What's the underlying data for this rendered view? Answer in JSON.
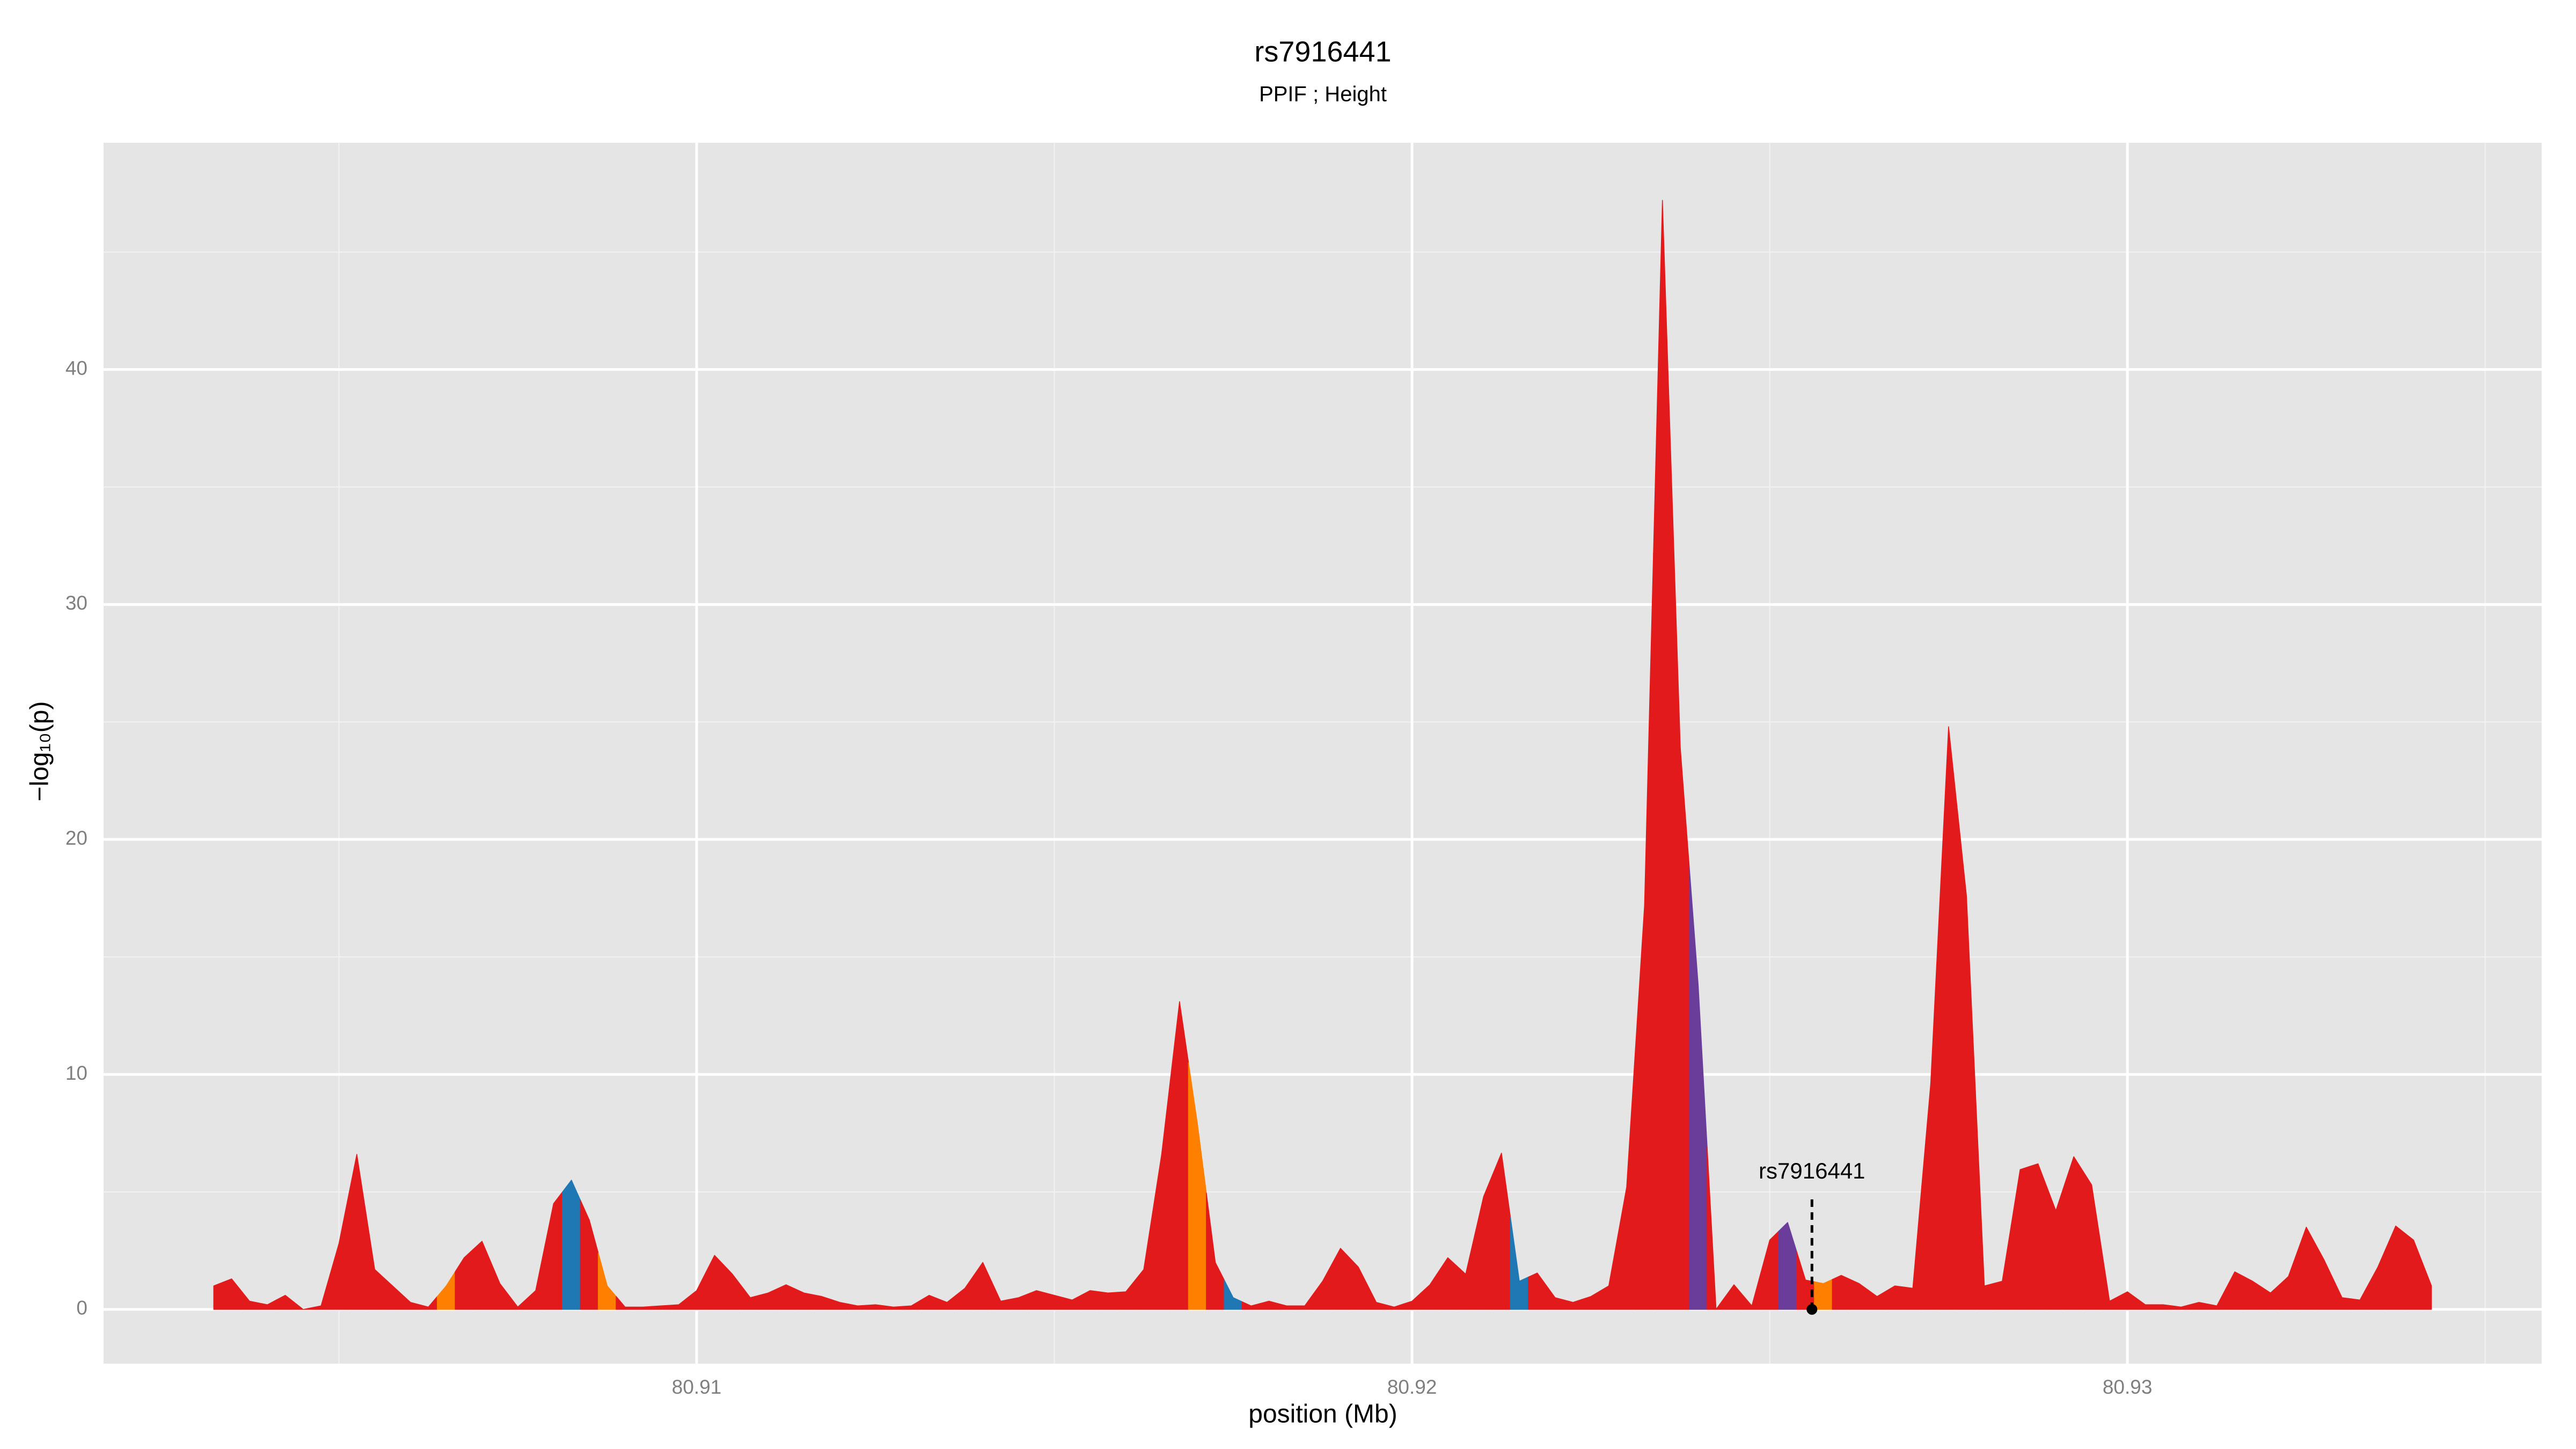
{
  "chart_data": {
    "type": "area",
    "title": "rs7916441",
    "subtitle": "PPIF ; Height",
    "x_label": "position (Mb)",
    "y_label": "−log₁₀(p)",
    "x": [
      80.90325,
      80.9035,
      80.90375,
      80.904,
      80.90425,
      80.9045,
      80.90475,
      80.905,
      80.90525,
      80.9055,
      80.90575,
      80.906,
      80.90625,
      80.9065,
      80.90675,
      80.907,
      80.90725,
      80.9075,
      80.90775,
      80.908,
      80.90825,
      80.9085,
      80.90875,
      80.909,
      80.90925,
      80.9095,
      80.90975,
      80.91,
      80.91025,
      80.9105,
      80.91075,
      80.911,
      80.91125,
      80.9115,
      80.91175,
      80.912,
      80.91225,
      80.9125,
      80.91275,
      80.913,
      80.91325,
      80.9135,
      80.91375,
      80.914,
      80.91425,
      80.9145,
      80.91475,
      80.915,
      80.91525,
      80.9155,
      80.91575,
      80.916,
      80.91625,
      80.9165,
      80.91675,
      80.917,
      80.91725,
      80.9175,
      80.91775,
      80.918,
      80.91825,
      80.9185,
      80.91875,
      80.919,
      80.91925,
      80.9195,
      80.91975,
      80.92,
      80.92025,
      80.9205,
      80.92075,
      80.921,
      80.92125,
      80.9215,
      80.92175,
      80.922,
      80.92225,
      80.9225,
      80.92275,
      80.923,
      80.92325,
      80.9235,
      80.92375,
      80.924,
      80.92425,
      80.9245,
      80.92475,
      80.925,
      80.92525,
      80.9255,
      80.92575,
      80.926,
      80.92625,
      80.9265,
      80.92675,
      80.927,
      80.92725,
      80.9275,
      80.92775,
      80.928,
      80.92825,
      80.9285,
      80.92875,
      80.929,
      80.92925,
      80.9295,
      80.92975,
      80.93,
      80.93025,
      80.9305,
      80.93075,
      80.931,
      80.93125,
      80.9315,
      80.93175,
      80.932,
      80.93225,
      80.9325,
      80.93275,
      80.933,
      80.93325,
      80.9335,
      80.93375,
      80.934,
      80.93425
    ],
    "values": [
      1.0,
      1.3,
      0.35,
      0.2,
      0.6,
      0,
      0.15,
      2.8,
      6.6,
      1.7,
      1.0,
      0.3,
      0.1,
      1.0,
      2.2,
      2.9,
      1.1,
      0.1,
      0.8,
      4.5,
      5.5,
      3.8,
      1.0,
      0.1,
      0.1,
      0.15,
      0.2,
      0.8,
      2.3,
      1.5,
      0.5,
      0.7,
      1.05,
      0.7,
      0.55,
      0.3,
      0.15,
      0.2,
      0.1,
      0.15,
      0.6,
      0.3,
      0.9,
      2.0,
      0.35,
      0.5,
      0.8,
      0.6,
      0.4,
      0.8,
      0.7,
      0.75,
      1.7,
      6.6,
      13.1,
      7.9,
      2.0,
      0.5,
      0.15,
      0.35,
      0.15,
      0.15,
      1.2,
      2.6,
      1.8,
      0.3,
      0.1,
      0.35,
      1.05,
      2.2,
      1.5,
      4.8,
      6.65,
      1.2,
      1.55,
      0.5,
      0.3,
      0.55,
      1.0,
      5.2,
      17.2,
      47.2,
      23.9,
      13.8,
      0,
      1.05,
      0.15,
      2.95,
      3.7,
      1.25,
      1.1,
      1.45,
      1.1,
      0.55,
      1.0,
      0.9,
      9.6,
      24.8,
      17.6,
      1.0,
      1.2,
      5.95,
      6.2,
      4.2,
      6.5,
      5.3,
      0.35,
      0.75,
      0.2,
      0.2,
      0.1,
      0.3,
      0.15,
      1.6,
      1.2,
      0.7,
      1.4,
      3.5,
      2.1,
      0.5,
      0.4,
      1.8,
      3.55,
      2.95,
      1.0
    ],
    "colors": [
      "#e31a1c",
      "#e31a1c",
      "#e31a1c",
      "#e31a1c",
      "#e31a1c",
      "#e31a1c",
      "#e31a1c",
      "#e31a1c",
      "#e31a1c",
      "#e31a1c",
      "#e31a1c",
      "#e31a1c",
      "#e31a1c",
      "#ff7f00",
      "#e31a1c",
      "#e31a1c",
      "#e31a1c",
      "#e31a1c",
      "#e31a1c",
      "#e31a1c",
      "#1f78b4",
      "#e31a1c",
      "#ff7f00",
      "#e31a1c",
      "#e31a1c",
      "#e31a1c",
      "#e31a1c",
      "#e31a1c",
      "#e31a1c",
      "#e31a1c",
      "#e31a1c",
      "#e31a1c",
      "#e31a1c",
      "#e31a1c",
      "#e31a1c",
      "#e31a1c",
      "#e31a1c",
      "#e31a1c",
      "#e31a1c",
      "#e31a1c",
      "#e31a1c",
      "#e31a1c",
      "#e31a1c",
      "#e31a1c",
      "#e31a1c",
      "#e31a1c",
      "#e31a1c",
      "#e31a1c",
      "#e31a1c",
      "#e31a1c",
      "#e31a1c",
      "#e31a1c",
      "#e31a1c",
      "#e31a1c",
      "#e31a1c",
      "#ff7f00",
      "#e31a1c",
      "#1f78b4",
      "#e31a1c",
      "#e31a1c",
      "#e31a1c",
      "#e31a1c",
      "#e31a1c",
      "#e31a1c",
      "#e31a1c",
      "#e31a1c",
      "#e31a1c",
      "#e31a1c",
      "#e31a1c",
      "#e31a1c",
      "#e31a1c",
      "#e31a1c",
      "#e31a1c",
      "#1f78b4",
      "#e31a1c",
      "#e31a1c",
      "#e31a1c",
      "#e31a1c",
      "#e31a1c",
      "#e31a1c",
      "#e31a1c",
      "#e31a1c",
      "#e31a1c",
      "#6a3d9a",
      "#e31a1c",
      "#e31a1c",
      "#e31a1c",
      "#e31a1c",
      "#6a3d9a",
      "#e31a1c",
      "#ff7f00",
      "#e31a1c",
      "#e31a1c",
      "#e31a1c",
      "#e31a1c",
      "#e31a1c",
      "#e31a1c",
      "#e31a1c",
      "#e31a1c",
      "#e31a1c",
      "#e31a1c",
      "#e31a1c",
      "#e31a1c",
      "#e31a1c",
      "#e31a1c",
      "#e31a1c",
      "#e31a1c",
      "#e31a1c",
      "#e31a1c",
      "#e31a1c",
      "#e31a1c",
      "#e31a1c",
      "#e31a1c",
      "#e31a1c",
      "#e31a1c",
      "#e31a1c",
      "#e31a1c",
      "#e31a1c",
      "#e31a1c",
      "#e31a1c",
      "#e31a1c",
      "#e31a1c",
      "#e31a1c",
      "#e31a1c",
      "#e31a1c"
    ],
    "annotation": {
      "label": "rs7916441",
      "x": 80.92559,
      "y": 0
    },
    "xlim": [
      80.90171,
      80.93579
    ],
    "xticks": [
      80.91,
      80.92,
      80.93
    ],
    "ylim": [
      -2.31,
      49.65
    ],
    "yticks": [
      0,
      10,
      20,
      30,
      40
    ],
    "grid": true
  }
}
